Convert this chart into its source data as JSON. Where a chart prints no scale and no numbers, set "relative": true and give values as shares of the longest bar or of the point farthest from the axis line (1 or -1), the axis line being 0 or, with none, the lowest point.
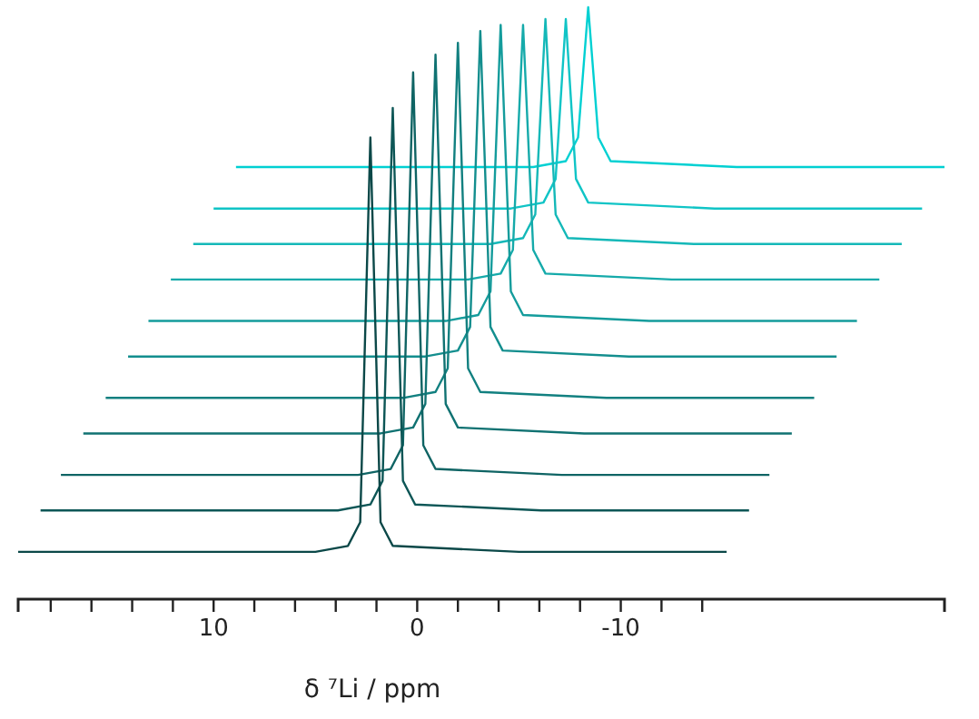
{
  "chart_data": {
    "type": "line",
    "relative": true,
    "xlabel": "δ ⁷Li / ppm",
    "xlim": [
      19.6,
      -25.9
    ],
    "xticks": [
      {
        "value": 18,
        "label": null
      },
      {
        "value": 16,
        "label": null
      },
      {
        "value": 14,
        "label": null
      },
      {
        "value": 12,
        "label": null
      },
      10,
      {
        "value": 8,
        "label": null
      },
      {
        "value": 6,
        "label": null
      },
      {
        "value": 4,
        "label": null
      },
      {
        "value": 2,
        "label": null
      },
      0,
      {
        "value": -2,
        "label": null
      },
      {
        "value": -4,
        "label": null
      },
      {
        "value": -6,
        "label": null
      },
      {
        "value": -8,
        "label": null
      },
      -10,
      {
        "value": -12,
        "label": null
      },
      {
        "value": -14,
        "label": null
      }
    ],
    "tick_labels": "x",
    "marker": "none",
    "line_style": "solid",
    "series": [
      {
        "color": "#0b4848",
        "x": [
          19.6,
          5,
          3.4,
          2.8,
          2.3,
          1.8,
          1.2,
          -5,
          -15.2
        ],
        "values": [
          0.08,
          0.08,
          0.09,
          0.13,
          0.78,
          0.13,
          0.09,
          0.08,
          0.08
        ]
      },
      {
        "color": "#0d5656",
        "x": [
          18.5,
          3.9,
          2.3,
          1.7,
          1.2,
          0.7,
          0.1,
          -6.1,
          -16.3
        ],
        "values": [
          0.15,
          0.15,
          0.16,
          0.2,
          0.83,
          0.2,
          0.16,
          0.15,
          0.15
        ]
      },
      {
        "color": "#0f6464",
        "x": [
          17.5,
          2.9,
          1.3,
          0.7,
          0.2,
          -0.3,
          -0.9,
          -7.1,
          -17.3
        ],
        "values": [
          0.21,
          0.21,
          0.22,
          0.26,
          0.89,
          0.26,
          0.22,
          0.21,
          0.21
        ]
      },
      {
        "color": "#107272",
        "x": [
          16.4,
          1.8,
          0.2,
          -0.4,
          -0.9,
          -1.4,
          -2,
          -8.2,
          -18.4
        ],
        "values": [
          0.28,
          0.28,
          0.29,
          0.33,
          0.92,
          0.33,
          0.29,
          0.28,
          0.28
        ]
      },
      {
        "color": "#128080",
        "x": [
          15.3,
          0.7,
          -0.9,
          -1.5,
          -2,
          -2.5,
          -3.1,
          -9.3,
          -19.5
        ],
        "values": [
          0.34,
          0.34,
          0.35,
          0.39,
          0.94,
          0.39,
          0.35,
          0.34,
          0.34
        ]
      },
      {
        "color": "#138e8e",
        "x": [
          14.2,
          -0.4,
          -2,
          -2.6,
          -3.1,
          -3.6,
          -4.2,
          -10.4,
          -20.6
        ],
        "values": [
          0.41,
          0.41,
          0.42,
          0.46,
          0.96,
          0.46,
          0.42,
          0.41,
          0.41
        ]
      },
      {
        "color": "#149c9c",
        "x": [
          13.2,
          -1.4,
          -3,
          -3.6,
          -4.1,
          -4.6,
          -5.2,
          -11.4,
          -21.6
        ],
        "values": [
          0.47,
          0.47,
          0.48,
          0.52,
          0.97,
          0.52,
          0.48,
          0.47,
          0.47
        ]
      },
      {
        "color": "#15aaaa",
        "x": [
          12.1,
          -2.5,
          -4.1,
          -4.7,
          -5.2,
          -5.7,
          -6.3,
          -12.5,
          -22.7
        ],
        "values": [
          0.54,
          0.54,
          0.55,
          0.59,
          0.97,
          0.59,
          0.55,
          0.54,
          0.54
        ]
      },
      {
        "color": "#14b8b8",
        "x": [
          11,
          -3.6,
          -5.2,
          -5.8,
          -6.3,
          -6.8,
          -7.4,
          -13.6,
          -23.8
        ],
        "values": [
          0.6,
          0.6,
          0.61,
          0.65,
          0.98,
          0.65,
          0.61,
          0.6,
          0.6
        ]
      },
      {
        "color": "#10c4c6",
        "x": [
          10,
          -4.6,
          -6.2,
          -6.8,
          -7.3,
          -7.8,
          -8.4,
          -14.6,
          -24.8
        ],
        "values": [
          0.66,
          0.66,
          0.67,
          0.71,
          0.98,
          0.71,
          0.67,
          0.66,
          0.66
        ]
      },
      {
        "color": "#00d0d2",
        "x": [
          8.9,
          -5.7,
          -7.3,
          -7.9,
          -8.4,
          -8.9,
          -9.5,
          -15.7,
          -25.9
        ],
        "values": [
          0.73,
          0.73,
          0.74,
          0.78,
          1,
          0.78,
          0.74,
          0.73,
          0.73
        ]
      }
    ]
  }
}
